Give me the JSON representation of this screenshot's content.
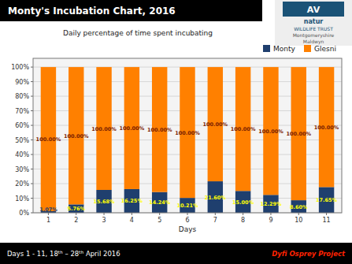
{
  "chart_data": {
    "type": "bar",
    "stacked": true,
    "title": "Monty's Incubation Chart, 2016",
    "subtitle": "Daily percentage of time spent incubating",
    "x_label": "Days",
    "x": [
      1,
      2,
      3,
      4,
      5,
      6,
      7,
      8,
      9,
      10,
      11
    ],
    "xlim": [
      0.45,
      11.55
    ],
    "xticks": [
      1,
      2,
      3,
      4,
      5,
      6,
      7,
      8,
      9,
      10,
      11
    ],
    "ylim": [
      0,
      106
    ],
    "yticks": [
      {
        "value": 0,
        "label": "0%"
      },
      {
        "value": 10,
        "label": "10%"
      },
      {
        "value": 20,
        "label": "20%"
      },
      {
        "value": 30,
        "label": "30%"
      },
      {
        "value": 40,
        "label": "40%"
      },
      {
        "value": 50,
        "label": "50%"
      },
      {
        "value": 60,
        "label": "60%"
      },
      {
        "value": 70,
        "label": "70%"
      },
      {
        "value": 80,
        "label": "80%"
      },
      {
        "value": 90,
        "label": "90%"
      },
      {
        "value": 100,
        "label": "100%"
      }
    ],
    "grid": true,
    "legend": "top-right",
    "data_labels": true,
    "series": [
      {
        "name": "Monty",
        "color": "#1F3F6E",
        "values": [
          1.07,
          5.76,
          15.68,
          16.25,
          14.24,
          10.21,
          21.6,
          15.0,
          12.29,
          8.6,
          17.65
        ],
        "value_labels": [
          "1.07%",
          "5.76%",
          "15.68%",
          "16.25%",
          "14.24%",
          "10.21%",
          "21.60%",
          "15.00%",
          "12.29%",
          "8.60%",
          "17.65%"
        ]
      },
      {
        "name": "Glesni",
        "color": "#FF8000",
        "values": [
          98.93,
          94.24,
          84.32,
          83.75,
          85.76,
          89.79,
          78.4,
          85.0,
          87.71,
          91.4,
          82.35
        ]
      }
    ],
    "totals": [
      100,
      100,
      100,
      100,
      100,
      100,
      100,
      100,
      100,
      100,
      100
    ],
    "total_labels": [
      "100.00%",
      "100.00%",
      "100.00%",
      "100.00%",
      "100.00%",
      "100.00%",
      "100.00%",
      "100.00%",
      "100.00%",
      "100.00%",
      "100.00%"
    ],
    "annotations": [
      "Days 1 - 11,  18ᵗʰ – 28ᵗʰ April 2016",
      "Dyfi Osprey Project",
      "AV",
      "natur",
      "WILDLIFE TRUST",
      "Montgomeryshire",
      "Maldwyn"
    ]
  }
}
